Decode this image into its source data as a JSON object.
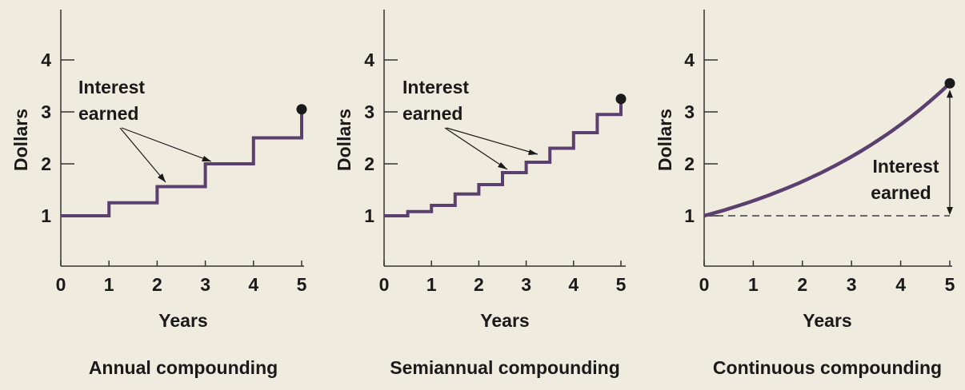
{
  "colors": {
    "background": "#f0ebdf",
    "line": "#5b3f6e",
    "axis": "#333333",
    "text": "#1a1a1a"
  },
  "chart_data": [
    {
      "type": "line",
      "title": "Annual compounding",
      "xlabel": "Years",
      "ylabel": "Dollars",
      "xlim": [
        0,
        5
      ],
      "ylim": [
        0,
        5
      ],
      "xticks": [
        "0",
        "1",
        "2",
        "3",
        "4",
        "5"
      ],
      "yticks": [
        "1",
        "2",
        "3",
        "4"
      ],
      "curve": "step",
      "points": [
        [
          0,
          1.0
        ],
        [
          1,
          1.25
        ],
        [
          2,
          1.5625
        ],
        [
          3,
          2.0
        ],
        [
          4,
          2.5
        ],
        [
          5,
          3.05
        ]
      ],
      "endpoint": [
        5,
        3.05
      ],
      "annotation": {
        "line1": "Interest",
        "line2": "earned"
      },
      "grid": false
    },
    {
      "type": "line",
      "title": "Semiannual compounding",
      "xlabel": "Years",
      "ylabel": "Dollars",
      "xlim": [
        0,
        5
      ],
      "ylim": [
        0,
        5
      ],
      "xticks": [
        "0",
        "1",
        "2",
        "3",
        "4",
        "5"
      ],
      "yticks": [
        "1",
        "2",
        "3",
        "4"
      ],
      "curve": "step",
      "points": [
        [
          0,
          1.0
        ],
        [
          0.5,
          1.08
        ],
        [
          1,
          1.2
        ],
        [
          1.5,
          1.42
        ],
        [
          2,
          1.6
        ],
        [
          2.5,
          1.83
        ],
        [
          3,
          2.03
        ],
        [
          3.5,
          2.3
        ],
        [
          4,
          2.6
        ],
        [
          4.5,
          2.95
        ],
        [
          5,
          3.25
        ]
      ],
      "endpoint": [
        5,
        3.25
      ],
      "annotation": {
        "line1": "Interest",
        "line2": "earned"
      },
      "grid": false
    },
    {
      "type": "line",
      "title": "Continuous compounding",
      "xlabel": "Years",
      "ylabel": "Dollars",
      "xlim": [
        0,
        5
      ],
      "ylim": [
        0,
        5
      ],
      "xticks": [
        "0",
        "1",
        "2",
        "3",
        "4",
        "5"
      ],
      "yticks": [
        "1",
        "2",
        "3",
        "4"
      ],
      "curve": "exponential",
      "points": [
        [
          0,
          1.0
        ],
        [
          1,
          1.29
        ],
        [
          2,
          1.66
        ],
        [
          3,
          2.13
        ],
        [
          4,
          2.75
        ],
        [
          5,
          3.55
        ]
      ],
      "endpoint": [
        5,
        3.55
      ],
      "baseline": 1,
      "annotation": {
        "line1": "Interest",
        "line2": "earned"
      },
      "grid": false
    }
  ]
}
